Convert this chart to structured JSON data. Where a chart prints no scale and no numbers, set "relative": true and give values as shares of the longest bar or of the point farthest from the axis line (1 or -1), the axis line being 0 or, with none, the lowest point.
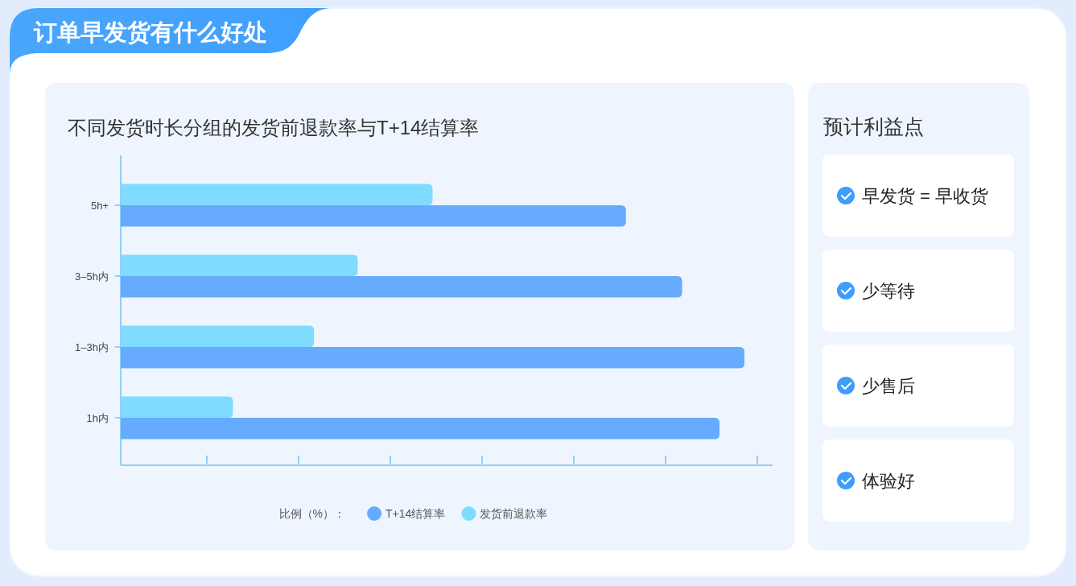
{
  "chart_data": [
    {
      "type": "bar",
      "orientation": "horizontal",
      "relative": true,
      "title": "订单早发货有什么好处",
      "subtitle": "不同发货时长分组的发货前退款率与T+14结算率",
      "legend_title": "比例（%）：",
      "legend": "bottom",
      "categories": [
        "5h+",
        "3–5h内",
        "1–3h内",
        "1h内"
      ],
      "series": [
        {
          "name": "T+14结算率",
          "color": "#66abfe",
          "values": [
            0.81,
            0.9,
            1,
            0.96
          ]
        },
        {
          "name": "发货前退款率",
          "color": "#7fdcff",
          "values": [
            0.5,
            0.38,
            0.31,
            0.18
          ]
        }
      ]
    },
    {
      "type": "other",
      "title": "预计利益点",
      "annotations": [
        "早发货 = 早收货",
        "少等待",
        "少售后",
        "体验好"
      ]
    }
  ]
}
